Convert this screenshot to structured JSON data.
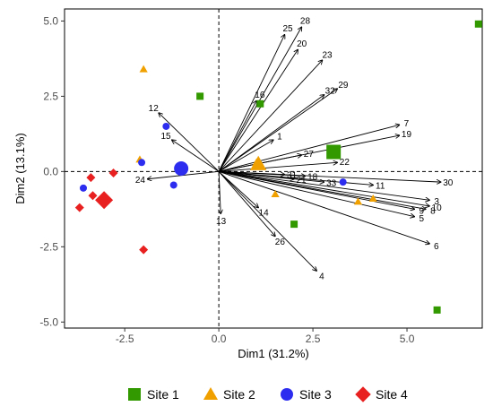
{
  "chart_data": {
    "type": "scatter",
    "subtype": "pca-biplot",
    "xlabel": "Dim1 (31.2%)",
    "ylabel": "Dim2 (13.1%)",
    "xlim": [
      -4.1,
      7.0
    ],
    "ylim": [
      -5.2,
      5.4
    ],
    "x_ticks": [
      -2.5,
      0.0,
      2.5,
      5.0
    ],
    "x_tick_labels": [
      "-2.5",
      "0.0",
      "2.5",
      "5.0"
    ],
    "y_ticks": [
      -5.0,
      -2.5,
      0.0,
      2.5,
      5.0
    ],
    "y_tick_labels": [
      "-5.0",
      "-2.5",
      "0.0",
      "2.5",
      "5.0"
    ],
    "grid": false,
    "zero_lines": "dashed",
    "legend_position": "bottom",
    "series": [
      {
        "name": "Site 1",
        "color": "#339900",
        "marker": "square",
        "points": [
          [
            6.9,
            4.9
          ],
          [
            -0.5,
            2.5
          ],
          [
            1.1,
            2.25
          ],
          [
            2.0,
            -1.75
          ],
          [
            5.8,
            -4.6
          ]
        ],
        "centroid": [
          3.05,
          0.65
        ]
      },
      {
        "name": "Site 2",
        "color": "#F0A100",
        "marker": "triangle",
        "points": [
          [
            -2.0,
            3.4
          ],
          [
            -2.1,
            0.4
          ],
          [
            1.0,
            0.3
          ],
          [
            1.5,
            -0.75
          ],
          [
            3.7,
            -1.0
          ],
          [
            4.1,
            -0.9
          ]
        ],
        "centroid": [
          1.05,
          0.25
        ]
      },
      {
        "name": "Site 3",
        "color": "#2D2DF0",
        "marker": "circle",
        "points": [
          [
            -1.4,
            1.5
          ],
          [
            -2.05,
            0.3
          ],
          [
            -3.6,
            -0.55
          ],
          [
            -1.2,
            -0.45
          ],
          [
            3.3,
            -0.35
          ]
        ],
        "centroid": [
          -1.0,
          0.1
        ]
      },
      {
        "name": "Site 4",
        "color": "#E82020",
        "marker": "diamond",
        "points": [
          [
            -2.8,
            -0.05
          ],
          [
            -3.4,
            -0.2
          ],
          [
            -3.35,
            -0.8
          ],
          [
            -3.7,
            -1.2
          ],
          [
            -2.0,
            -2.6
          ]
        ],
        "centroid": [
          -3.05,
          -0.95
        ]
      }
    ],
    "variables": [
      {
        "label": "1",
        "x": 1.45,
        "y": 1.05
      },
      {
        "label": "3",
        "x": 5.6,
        "y": -0.95
      },
      {
        "label": "4",
        "x": 2.6,
        "y": -3.3
      },
      {
        "label": "5",
        "x": 5.2,
        "y": -1.5
      },
      {
        "label": "6",
        "x": 5.6,
        "y": -2.4
      },
      {
        "label": "7",
        "x": 4.8,
        "y": 1.55
      },
      {
        "label": "8",
        "x": 5.5,
        "y": -1.25
      },
      {
        "label": "9",
        "x": 5.2,
        "y": -1.25
      },
      {
        "label": "10",
        "x": 5.6,
        "y": -1.15
      },
      {
        "label": "11",
        "x": 4.1,
        "y": -0.45
      },
      {
        "label": "12",
        "x": -1.6,
        "y": 1.95
      },
      {
        "label": "13",
        "x": 0.05,
        "y": -1.4
      },
      {
        "label": "14",
        "x": 1.05,
        "y": -1.2
      },
      {
        "label": "15",
        "x": -1.25,
        "y": 1.05
      },
      {
        "label": "16",
        "x": 1.0,
        "y": 2.35
      },
      {
        "label": "18",
        "x": 2.3,
        "y": -0.15
      },
      {
        "label": "19",
        "x": 4.8,
        "y": 1.2
      },
      {
        "label": "20",
        "x": 2.1,
        "y": 4.05
      },
      {
        "label": "21",
        "x": 2.0,
        "y": -0.25
      },
      {
        "label": "22",
        "x": 3.15,
        "y": 0.3
      },
      {
        "label": "23",
        "x": 2.75,
        "y": 3.7
      },
      {
        "label": "24",
        "x": -1.9,
        "y": -0.25
      },
      {
        "label": "25",
        "x": 1.75,
        "y": 4.55
      },
      {
        "label": "26",
        "x": 1.5,
        "y": -2.15
      },
      {
        "label": "27",
        "x": 2.2,
        "y": 0.55
      },
      {
        "label": "28",
        "x": 2.2,
        "y": 4.8
      },
      {
        "label": "29",
        "x": 3.15,
        "y": 2.75
      },
      {
        "label": "30",
        "x": 5.9,
        "y": -0.35
      },
      {
        "label": "31",
        "x": 1.75,
        "y": -0.1
      },
      {
        "label": "32",
        "x": 2.8,
        "y": 2.55
      },
      {
        "label": "33",
        "x": 2.8,
        "y": -0.35
      }
    ]
  }
}
